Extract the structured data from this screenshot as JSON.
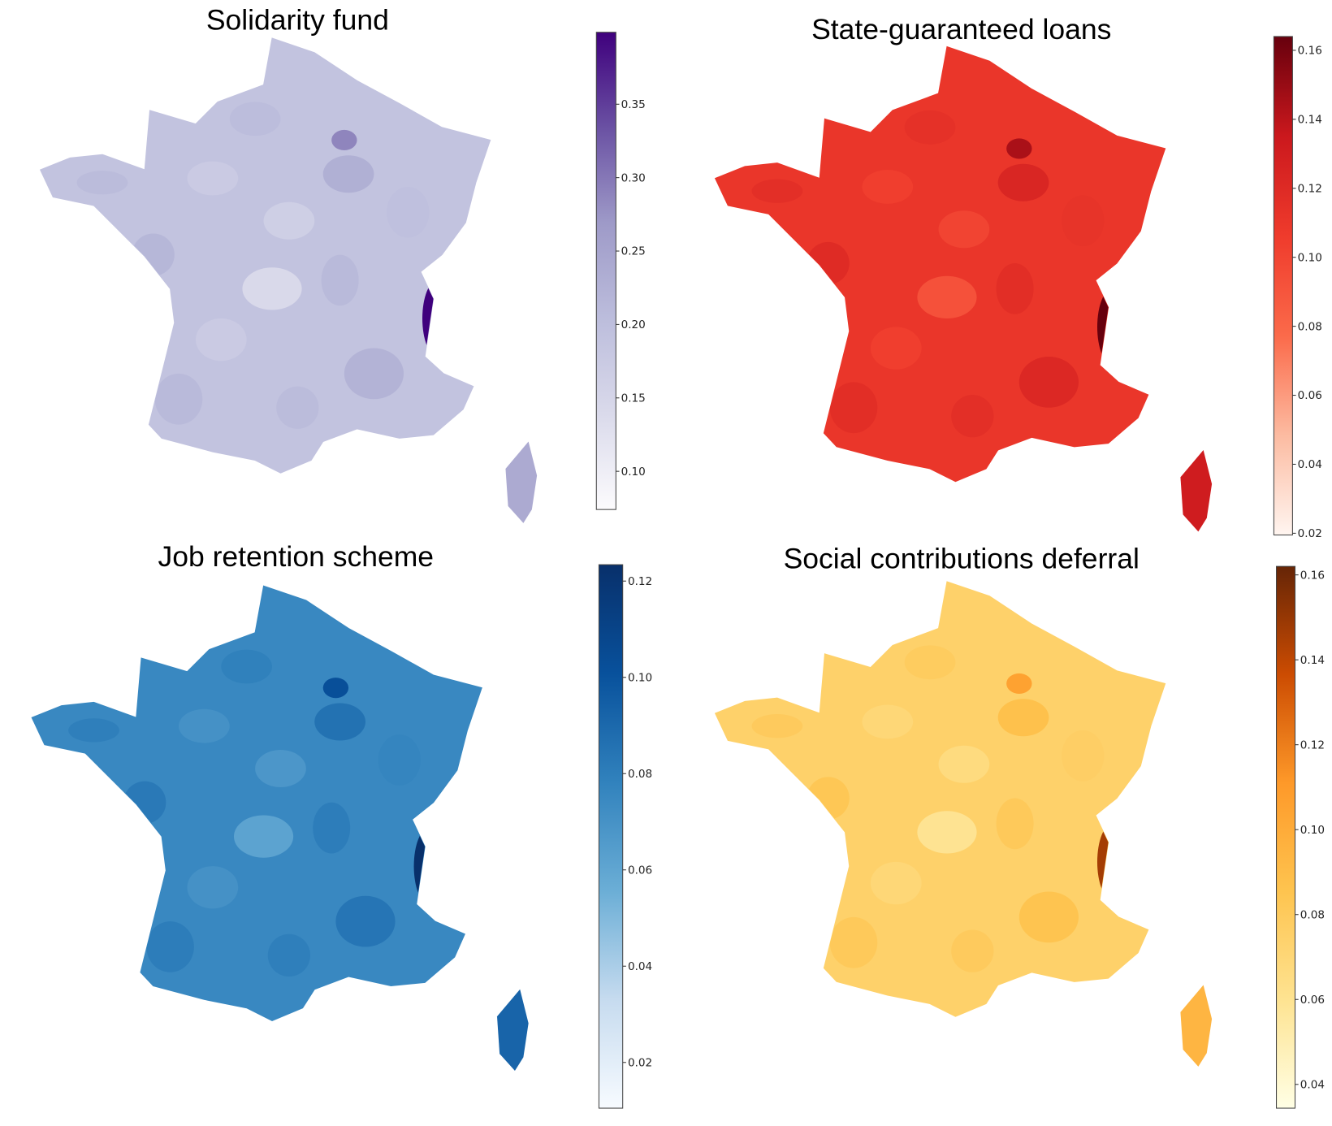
{
  "panels": [
    {
      "title": "Solidarity fund",
      "colormap": "Purples",
      "range": [
        0.074,
        0.399
      ],
      "ticks": [
        "0.10",
        "0.15",
        "0.20",
        "0.25",
        "0.30",
        "0.35"
      ],
      "stops": [
        "#fcfbfd",
        "#dadaeb",
        "#bcbddc",
        "#9e9ac8",
        "#6a51a3",
        "#3f007d"
      ],
      "base": 0.19
    },
    {
      "title": "State-guaranteed loans",
      "colormap": "Reds",
      "range": [
        0.0195,
        0.164
      ],
      "ticks": [
        "0.02",
        "0.04",
        "0.06",
        "0.08",
        "0.10",
        "0.12",
        "0.14",
        "0.16"
      ],
      "stops": [
        "#fff5f0",
        "#fcbba1",
        "#fb6a4a",
        "#ef3b2c",
        "#cb181d",
        "#67000d"
      ],
      "base": 0.11
    },
    {
      "title": "Job retention scheme",
      "colormap": "Blues",
      "range": [
        0.0105,
        0.1234
      ],
      "ticks": [
        "0.02",
        "0.04",
        "0.06",
        "0.08",
        "0.10",
        "0.12"
      ],
      "stops": [
        "#f7fbff",
        "#c6dbef",
        "#6baed6",
        "#3182bd",
        "#08519c",
        "#08306b"
      ],
      "base": 0.075
    },
    {
      "title": "Social contributions deferral",
      "colormap": "YlOrBr",
      "range": [
        0.0344,
        0.162
      ],
      "ticks": [
        "0.04",
        "0.06",
        "0.08",
        "0.10",
        "0.12",
        "0.14",
        "0.16"
      ],
      "stops": [
        "#ffffe5",
        "#fee391",
        "#fec44f",
        "#fe9929",
        "#cc4c02",
        "#662506"
      ],
      "base": 0.075
    }
  ]
}
